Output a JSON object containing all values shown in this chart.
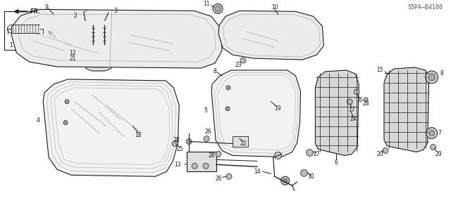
{
  "bg_color": "#ffffff",
  "line_color": "#1a1a1a",
  "part_number": "S5PA–B4100",
  "fig_width": 6.4,
  "fig_height": 3.19,
  "dpi": 100,
  "gray_fill": "#e8e8e8",
  "dark_gray": "#c0c0c0",
  "grid_fill": "#d4d4d4",
  "label_fontsize": 5.5,
  "small_label_fontsize": 5.0
}
